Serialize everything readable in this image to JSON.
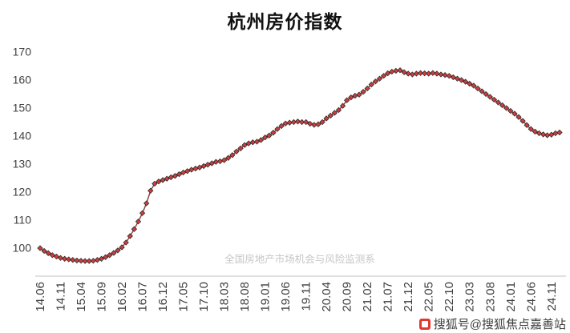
{
  "chart_data": {
    "type": "line",
    "title": "杭州房价指数",
    "series": [
      {
        "name": "杭州房价指数",
        "values": [
          100.0,
          99.0,
          98.2,
          97.5,
          97.0,
          96.5,
          96.2,
          96.0,
          95.8,
          95.6,
          95.5,
          95.4,
          95.4,
          95.5,
          95.8,
          96.2,
          96.8,
          97.5,
          98.3,
          99.2,
          100.3,
          102.0,
          104.3,
          106.8,
          109.5,
          112.5,
          116.0,
          120.5,
          123.0,
          123.8,
          124.3,
          124.8,
          125.3,
          125.8,
          126.4,
          127.0,
          127.5,
          128.0,
          128.4,
          128.8,
          129.3,
          129.8,
          130.3,
          130.8,
          131.0,
          131.4,
          132.2,
          133.2,
          134.5,
          135.6,
          136.8,
          137.4,
          137.8,
          138.0,
          138.6,
          139.5,
          140.2,
          141.2,
          142.5,
          143.6,
          144.5,
          144.8,
          145.0,
          145.2,
          145.0,
          145.0,
          144.4,
          144.0,
          144.2,
          145.0,
          146.3,
          147.3,
          148.3,
          149.3,
          150.8,
          152.8,
          153.8,
          154.4,
          154.8,
          155.8,
          157.0,
          158.4,
          159.5,
          160.5,
          161.5,
          162.4,
          163.0,
          163.3,
          163.5,
          162.8,
          162.3,
          162.0,
          162.3,
          162.5,
          162.4,
          162.3,
          162.5,
          162.3,
          162.0,
          161.8,
          161.5,
          161.0,
          160.5,
          160.0,
          159.4,
          158.7,
          158.0,
          157.0,
          156.0,
          155.0,
          154.0,
          153.0,
          152.0,
          151.0,
          150.0,
          149.0,
          148.0,
          146.8,
          145.4,
          143.9,
          142.5,
          141.6,
          141.0,
          140.6,
          140.3,
          140.5,
          141.0,
          141.3
        ]
      }
    ],
    "x": [
      "14.06",
      "14.07",
      "14.08",
      "14.09",
      "14.10",
      "14.11",
      "14.12",
      "15.01",
      "15.02",
      "15.03",
      "15.04",
      "15.05",
      "15.06",
      "15.07",
      "15.08",
      "15.09",
      "15.10",
      "15.11",
      "15.12",
      "16.01",
      "16.02",
      "16.03",
      "16.04",
      "16.05",
      "16.06",
      "16.07",
      "16.08",
      "16.09",
      "16.10",
      "16.11",
      "16.12",
      "17.01",
      "17.02",
      "17.03",
      "17.04",
      "17.05",
      "17.06",
      "17.07",
      "17.08",
      "17.09",
      "17.10",
      "17.11",
      "17.12",
      "18.01",
      "18.02",
      "18.03",
      "18.04",
      "18.05",
      "18.06",
      "18.07",
      "18.08",
      "18.09",
      "18.10",
      "18.11",
      "18.12",
      "19.01",
      "19.02",
      "19.03",
      "19.04",
      "19.05",
      "19.06",
      "19.07",
      "19.08",
      "19.09",
      "19.10",
      "19.11",
      "19.12",
      "20.01",
      "20.02",
      "20.03",
      "20.04",
      "20.05",
      "20.06",
      "20.07",
      "20.08",
      "20.09",
      "20.10",
      "20.11",
      "20.12",
      "21.01",
      "21.02",
      "21.03",
      "21.04",
      "21.05",
      "21.06",
      "21.07",
      "21.08",
      "21.09",
      "21.10",
      "21.11",
      "21.12",
      "22.01",
      "22.02",
      "22.03",
      "22.04",
      "22.05",
      "22.06",
      "22.07",
      "22.08",
      "22.09",
      "22.10",
      "22.11",
      "22.12",
      "23.01",
      "23.02",
      "23.03",
      "23.04",
      "23.05",
      "23.06",
      "23.07",
      "23.08",
      "23.09",
      "23.10",
      "23.11",
      "23.12",
      "24.01",
      "24.02",
      "24.03",
      "24.04",
      "24.05",
      "24.06",
      "24.07",
      "24.08",
      "24.09",
      "24.10",
      "24.11",
      "24.12",
      "25.01"
    ],
    "x_tick_every": 5,
    "x_tick_labels": [
      "14.06",
      "14.11",
      "15.04",
      "15.09",
      "16.02",
      "16.07",
      "16.12",
      "17.05",
      "17.10",
      "18.03",
      "18.08",
      "19.01",
      "19.06",
      "19.11",
      "20.04",
      "20.09",
      "21.02",
      "21.07",
      "21.12",
      "22.05",
      "22.10",
      "23.03",
      "23.08",
      "24.01",
      "24.06",
      "24.11"
    ],
    "y_ticks": [
      100,
      110,
      120,
      130,
      140,
      150,
      160,
      170
    ],
    "ylim": [
      90,
      170
    ],
    "grid": false,
    "legend": "none",
    "marker": "diamond",
    "line_color": "#8c3839",
    "marker_fill": "#cf3e3e",
    "marker_stroke": "#2b2b2b",
    "axis_line_color": "#c0c0c0",
    "watermark": "全国房地产市场机会与风险监测系"
  },
  "footer": {
    "sohu_badge": "搜狐号@搜狐焦点嘉善站"
  }
}
